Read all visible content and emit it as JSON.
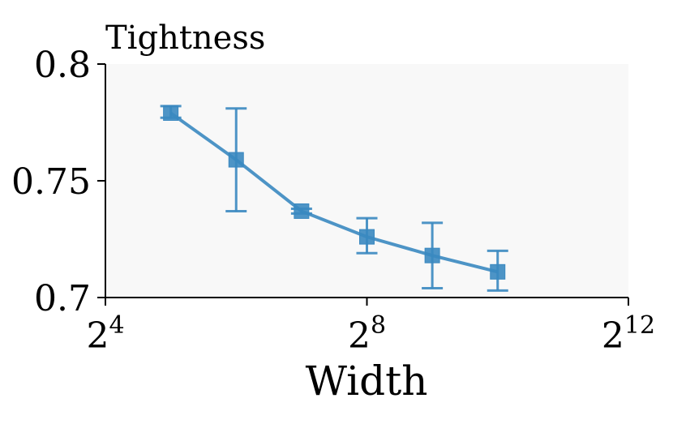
{
  "chart_data": {
    "type": "line",
    "title": "Tightness",
    "xlabel": "Width",
    "ylabel": "",
    "x_scale": "log2",
    "xlim": [
      16,
      4096
    ],
    "ylim": [
      0.7,
      0.8
    ],
    "x_ticks": [
      {
        "value": 16,
        "base": "2",
        "exp": "4"
      },
      {
        "value": 256,
        "base": "2",
        "exp": "8"
      },
      {
        "value": 4096,
        "base": "2",
        "exp": "12"
      }
    ],
    "y_ticks": [
      {
        "value": 0.7,
        "label": "0.7"
      },
      {
        "value": 0.75,
        "label": "0.75"
      },
      {
        "value": 0.8,
        "label": "0.8"
      }
    ],
    "grid": false,
    "marker": "square",
    "colors": {
      "series": "#3a88c0",
      "plot_bg": "#f8f8f8"
    },
    "series": [
      {
        "x": [
          32,
          64,
          128,
          256,
          512,
          1024
        ],
        "y": [
          0.779,
          0.759,
          0.737,
          0.726,
          0.718,
          0.711
        ],
        "err_low": [
          0.777,
          0.737,
          0.736,
          0.719,
          0.704,
          0.703
        ],
        "err_high": [
          0.782,
          0.781,
          0.738,
          0.734,
          0.732,
          0.72
        ]
      }
    ]
  }
}
